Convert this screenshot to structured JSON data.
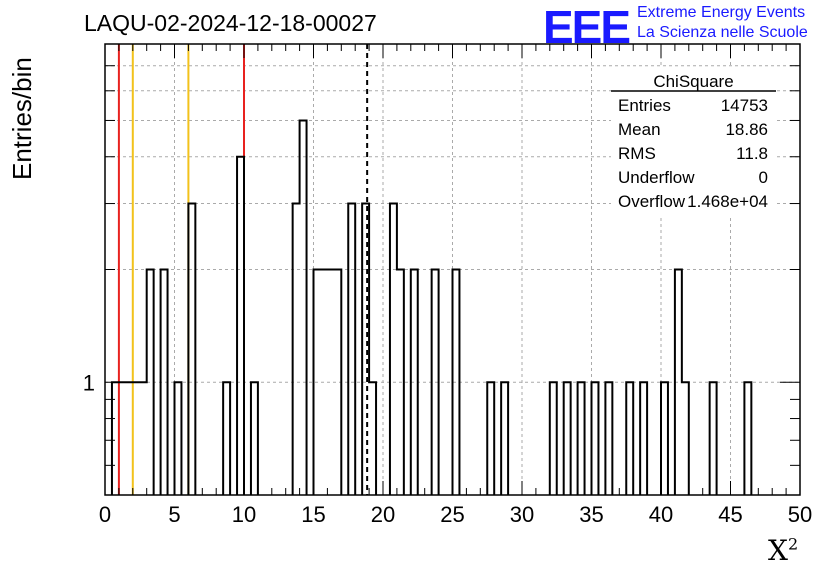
{
  "header": {
    "title": "LAQU-02-2024-12-18-00027",
    "logo_text": "EEE",
    "brand_line1": "Extreme Energy Events",
    "brand_line2": "La Scienza nelle Scuole"
  },
  "colors": {
    "logo": "#1a1aff",
    "red_line": "#e8221f",
    "yellow_line": "#f2c21b",
    "grid": "#aaaaaa"
  },
  "chart_data": {
    "type": "bar",
    "title": "LAQU-02-2024-12-18-00027",
    "xlabel": "X",
    "xlabel_superscript": "2",
    "ylabel": "Entries/bin",
    "xlim": [
      0,
      50
    ],
    "ylim": [
      0.5,
      8
    ],
    "yscale": "log",
    "grid": true,
    "bin_width": 0.5,
    "x_ticks": [
      "0",
      "5",
      "10",
      "15",
      "20",
      "25",
      "30",
      "35",
      "40",
      "45",
      "50"
    ],
    "y_ticks": [
      "1"
    ],
    "bins": [
      {
        "x": 0.5,
        "y": 1
      },
      {
        "x": 1.0,
        "y": 1
      },
      {
        "x": 1.5,
        "y": 1
      },
      {
        "x": 2.0,
        "y": 1
      },
      {
        "x": 2.5,
        "y": 1
      },
      {
        "x": 3.0,
        "y": 2
      },
      {
        "x": 4.0,
        "y": 2
      },
      {
        "x": 5.0,
        "y": 1
      },
      {
        "x": 6.0,
        "y": 3
      },
      {
        "x": 8.5,
        "y": 1
      },
      {
        "x": 9.5,
        "y": 4
      },
      {
        "x": 10.5,
        "y": 1
      },
      {
        "x": 13.5,
        "y": 3
      },
      {
        "x": 14.0,
        "y": 5
      },
      {
        "x": 15.0,
        "y": 2
      },
      {
        "x": 15.5,
        "y": 2
      },
      {
        "x": 16.0,
        "y": 2
      },
      {
        "x": 16.5,
        "y": 2
      },
      {
        "x": 17.5,
        "y": 3
      },
      {
        "x": 18.5,
        "y": 3
      },
      {
        "x": 19.0,
        "y": 1
      },
      {
        "x": 20.5,
        "y": 3
      },
      {
        "x": 21.0,
        "y": 2
      },
      {
        "x": 22.0,
        "y": 2
      },
      {
        "x": 23.5,
        "y": 2
      },
      {
        "x": 25.0,
        "y": 2
      },
      {
        "x": 27.5,
        "y": 1
      },
      {
        "x": 28.5,
        "y": 1
      },
      {
        "x": 32.0,
        "y": 1
      },
      {
        "x": 33.0,
        "y": 1
      },
      {
        "x": 34.0,
        "y": 1
      },
      {
        "x": 35.0,
        "y": 1
      },
      {
        "x": 36.0,
        "y": 1
      },
      {
        "x": 37.5,
        "y": 1
      },
      {
        "x": 38.5,
        "y": 1
      },
      {
        "x": 40.0,
        "y": 1
      },
      {
        "x": 41.0,
        "y": 2
      },
      {
        "x": 41.5,
        "y": 1
      },
      {
        "x": 43.5,
        "y": 1
      },
      {
        "x": 46.0,
        "y": 1
      }
    ],
    "reference_lines": [
      {
        "x": 1.0,
        "color": "red",
        "style": "solid"
      },
      {
        "x": 2.0,
        "color": "yellow",
        "style": "solid"
      },
      {
        "x": 6.0,
        "color": "yellow",
        "style": "solid"
      },
      {
        "x": 10.0,
        "color": "red",
        "style": "solid"
      },
      {
        "x": 18.86,
        "color": "black",
        "style": "dashed"
      }
    ],
    "stats_box": {
      "title": "ChiSquare",
      "rows": [
        {
          "label": "Entries",
          "value": "14753"
        },
        {
          "label": "Mean",
          "value": "18.86"
        },
        {
          "label": "RMS",
          "value": "11.8"
        },
        {
          "label": "Underflow",
          "value": "0"
        },
        {
          "label": "Overflow",
          "value": "1.468e+04"
        }
      ]
    }
  }
}
